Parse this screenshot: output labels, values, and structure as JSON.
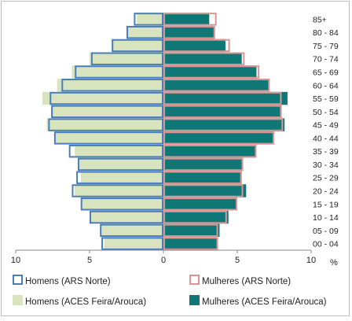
{
  "chart_data": {
    "type": "bar",
    "orientation": "horizontal",
    "layout": "population-pyramid",
    "categories": [
      "00 - 04",
      "05 - 09",
      "10 - 14",
      "15 - 19",
      "20 - 24",
      "25 - 29",
      "30 - 34",
      "35 - 39",
      "40 - 44",
      "45 - 49",
      "50 - 54",
      "55 - 59",
      "60 - 64",
      "65 - 69",
      "70 - 74",
      "75 - 79",
      "80 - 84",
      "85+"
    ],
    "x_ticks": [
      "10",
      "5",
      "0",
      "5",
      "10"
    ],
    "x_unit": "%",
    "xlim": [
      -10,
      10
    ],
    "grid": false,
    "legend_position": "bottom",
    "series": [
      {
        "name": "Homens (ARS Norte)",
        "side": "left",
        "style": "outline",
        "color": "#4a7ebb",
        "values": [
          4.2,
          4.3,
          5.0,
          5.6,
          6.2,
          5.9,
          5.8,
          6.4,
          7.4,
          7.8,
          7.6,
          7.7,
          6.9,
          6.0,
          4.9,
          3.5,
          2.5,
          2.0
        ]
      },
      {
        "name": "Mulheres (ARS Norte)",
        "side": "right",
        "style": "outline",
        "color": "#d99594",
        "values": [
          3.7,
          3.7,
          4.3,
          5.0,
          5.4,
          5.3,
          5.4,
          6.3,
          7.5,
          8.1,
          8.0,
          8.0,
          7.2,
          6.5,
          5.5,
          4.5,
          3.5,
          3.6
        ]
      },
      {
        "name": "Homens (ACES Feira/Arouca)",
        "side": "left",
        "style": "filled",
        "color": "#d7e4bd",
        "values": [
          4.0,
          4.2,
          4.9,
          5.5,
          6.0,
          5.6,
          5.8,
          6.0,
          7.3,
          7.9,
          7.6,
          8.2,
          7.2,
          6.2,
          5.0,
          3.5,
          2.4,
          1.8
        ]
      },
      {
        "name": "Mulheres (ACES Feira/Arouca)",
        "side": "right",
        "style": "filled",
        "color": "#0f7877",
        "values": [
          3.6,
          3.8,
          4.4,
          5.0,
          5.6,
          5.3,
          5.3,
          6.2,
          7.4,
          8.2,
          8.0,
          8.4,
          7.1,
          6.3,
          5.3,
          4.2,
          3.4,
          3.1
        ]
      }
    ]
  }
}
